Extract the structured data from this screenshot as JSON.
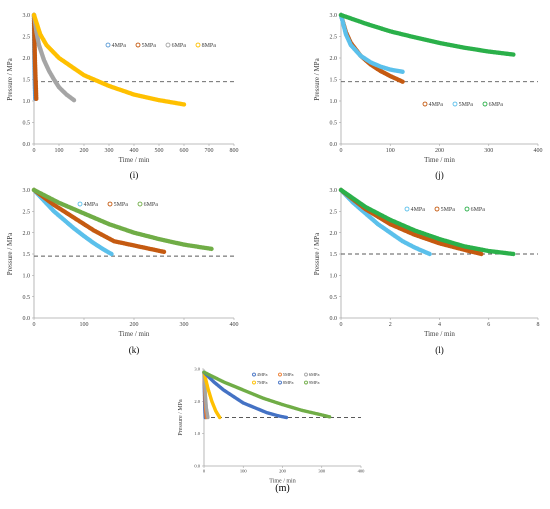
{
  "chart_data": [
    {
      "type": "scatter",
      "panel_label": "(i)",
      "xlabel": "Time / min",
      "ylabel": "Pressure / MPa",
      "xlim": [
        0,
        800
      ],
      "ylim": [
        0,
        3
      ],
      "xticks": [
        0,
        100,
        200,
        300,
        400,
        500,
        600,
        700,
        800
      ],
      "yticks": [
        0.0,
        0.5,
        1.0,
        1.5,
        2.0,
        2.5,
        3.0
      ],
      "legend_position": "top-right",
      "reference_line": 1.45,
      "series": [
        {
          "name": "4MPa",
          "color": "#5b9bd5",
          "x": [
            0,
            1,
            2,
            3,
            4,
            5
          ],
          "y": [
            3.0,
            2.2,
            1.8,
            1.5,
            1.25,
            1.05
          ]
        },
        {
          "name": "5MPa",
          "color": "#c55a11",
          "x": [
            0,
            2,
            4,
            6,
            8,
            9
          ],
          "y": [
            3.0,
            2.4,
            1.9,
            1.55,
            1.25,
            1.05
          ]
        },
        {
          "name": "6MPa",
          "color": "#a5a5a5",
          "x": [
            0,
            10,
            20,
            40,
            60,
            80,
            100,
            130,
            160
          ],
          "y": [
            3.0,
            2.6,
            2.3,
            1.95,
            1.7,
            1.5,
            1.32,
            1.15,
            1.02
          ]
        },
        {
          "name": "8MPa",
          "color": "#ffc000",
          "x": [
            0,
            25,
            50,
            100,
            150,
            200,
            300,
            400,
            500,
            600
          ],
          "y": [
            3.0,
            2.55,
            2.3,
            2.0,
            1.8,
            1.6,
            1.35,
            1.15,
            1.02,
            0.92
          ]
        }
      ]
    },
    {
      "type": "scatter",
      "panel_label": "(j)",
      "xlabel": "Time / min",
      "ylabel": "Pressure / MPa",
      "xlim": [
        0,
        400
      ],
      "ylim": [
        0,
        3
      ],
      "xticks": [
        0,
        100,
        200,
        300,
        400
      ],
      "yticks": [
        0.0,
        0.5,
        1.0,
        1.5,
        2.0,
        2.5,
        3.0
      ],
      "legend_position": "bottom-right",
      "reference_line": 1.45,
      "series": [
        {
          "name": "4MPa",
          "color": "#c55a11",
          "x": [
            0,
            10,
            20,
            40,
            60,
            80,
            100,
            125
          ],
          "y": [
            3.0,
            2.6,
            2.35,
            2.05,
            1.85,
            1.7,
            1.58,
            1.45
          ]
        },
        {
          "name": "5MPa",
          "color": "#5bc0eb",
          "x": [
            0,
            10,
            20,
            40,
            60,
            80,
            100,
            125
          ],
          "y": [
            3.0,
            2.55,
            2.3,
            2.05,
            1.9,
            1.8,
            1.73,
            1.68
          ]
        },
        {
          "name": "6MPa",
          "color": "#2bb04a",
          "x": [
            0,
            50,
            100,
            150,
            200,
            250,
            300,
            350
          ],
          "y": [
            3.0,
            2.8,
            2.62,
            2.48,
            2.35,
            2.24,
            2.15,
            2.08
          ]
        }
      ]
    },
    {
      "type": "scatter",
      "panel_label": "(k)",
      "xlabel": "Time / min",
      "ylabel": "Pressure / MPa",
      "xlim": [
        0,
        400
      ],
      "ylim": [
        0,
        3
      ],
      "xticks": [
        0,
        100,
        200,
        300,
        400
      ],
      "yticks": [
        0.0,
        0.5,
        1.0,
        1.5,
        2.0,
        2.5,
        3.0
      ],
      "legend_position": "top-right",
      "reference_line": 1.45,
      "series": [
        {
          "name": "4MPa",
          "color": "#5bc0eb",
          "x": [
            0,
            20,
            40,
            60,
            80,
            100,
            120,
            140,
            155
          ],
          "y": [
            3.0,
            2.75,
            2.5,
            2.3,
            2.1,
            1.92,
            1.75,
            1.6,
            1.5
          ]
        },
        {
          "name": "5MPa",
          "color": "#c55a11",
          "x": [
            0,
            40,
            80,
            120,
            160,
            200,
            260
          ],
          "y": [
            3.0,
            2.65,
            2.35,
            2.05,
            1.8,
            1.7,
            1.55
          ]
        },
        {
          "name": "6MPa",
          "color": "#70ad47",
          "x": [
            0,
            50,
            100,
            150,
            200,
            250,
            300,
            355
          ],
          "y": [
            3.0,
            2.7,
            2.45,
            2.2,
            2.0,
            1.85,
            1.72,
            1.62
          ]
        }
      ]
    },
    {
      "type": "scatter",
      "panel_label": "(l)",
      "xlabel": "Time / min",
      "ylabel": "Pressure / MPa",
      "xlim": [
        0,
        8
      ],
      "ylim": [
        0,
        3
      ],
      "xticks": [
        0,
        2,
        4,
        6,
        8
      ],
      "yticks": [
        0.0,
        0.5,
        1.0,
        1.5,
        2.0,
        2.5,
        3.0
      ],
      "legend_position": "top-right",
      "reference_line": 1.5,
      "series": [
        {
          "name": "4MPa",
          "color": "#5bc0eb",
          "x": [
            0,
            0.5,
            1,
            1.5,
            2,
            2.5,
            3,
            3.6
          ],
          "y": [
            3.0,
            2.7,
            2.45,
            2.2,
            2.0,
            1.8,
            1.65,
            1.5
          ]
        },
        {
          "name": "5MPa",
          "color": "#c55a11",
          "x": [
            0,
            1,
            2,
            3,
            4,
            5,
            5.7
          ],
          "y": [
            3.0,
            2.55,
            2.2,
            1.95,
            1.75,
            1.6,
            1.5
          ]
        },
        {
          "name": "6MPa",
          "color": "#2bb04a",
          "x": [
            0,
            1,
            2,
            3,
            4,
            5,
            6,
            7
          ],
          "y": [
            3.0,
            2.6,
            2.3,
            2.05,
            1.85,
            1.68,
            1.57,
            1.5
          ]
        }
      ]
    },
    {
      "type": "scatter",
      "panel_label": "(m)",
      "xlabel": "Time / min",
      "ylabel": "Pressure / MPa",
      "xlim": [
        0,
        400
      ],
      "ylim": [
        0,
        3
      ],
      "xticks": [
        0,
        100,
        200,
        300,
        400
      ],
      "yticks": [
        0.0,
        1.0,
        2.0,
        3.0
      ],
      "legend_position": "top-right",
      "reference_line": 1.5,
      "series": [
        {
          "name": "4MPa",
          "color": "#4472c4",
          "x": [
            0,
            1,
            2,
            3
          ],
          "y": [
            2.9,
            2.3,
            1.8,
            1.5
          ]
        },
        {
          "name": "5MPa",
          "color": "#ed7d31",
          "x": [
            0,
            2,
            4,
            6
          ],
          "y": [
            2.9,
            2.3,
            1.8,
            1.5
          ]
        },
        {
          "name": "6MPa",
          "color": "#a5a5a5",
          "x": [
            0,
            3,
            6,
            10
          ],
          "y": [
            2.9,
            2.3,
            1.8,
            1.5
          ]
        },
        {
          "name": "7MPa",
          "color": "#ffc000",
          "x": [
            0,
            10,
            20,
            30,
            40
          ],
          "y": [
            2.9,
            2.4,
            2.0,
            1.7,
            1.5
          ]
        },
        {
          "name": "8MPa",
          "color": "#4472c4",
          "x": [
            0,
            25,
            50,
            75,
            100,
            130,
            160,
            190,
            210
          ],
          "y": [
            2.9,
            2.6,
            2.35,
            2.15,
            1.95,
            1.8,
            1.65,
            1.55,
            1.5
          ]
        },
        {
          "name": "9MPa",
          "color": "#70ad47",
          "x": [
            0,
            50,
            100,
            150,
            200,
            250,
            300,
            320
          ],
          "y": [
            2.9,
            2.6,
            2.35,
            2.1,
            1.9,
            1.72,
            1.58,
            1.52
          ]
        }
      ]
    }
  ]
}
